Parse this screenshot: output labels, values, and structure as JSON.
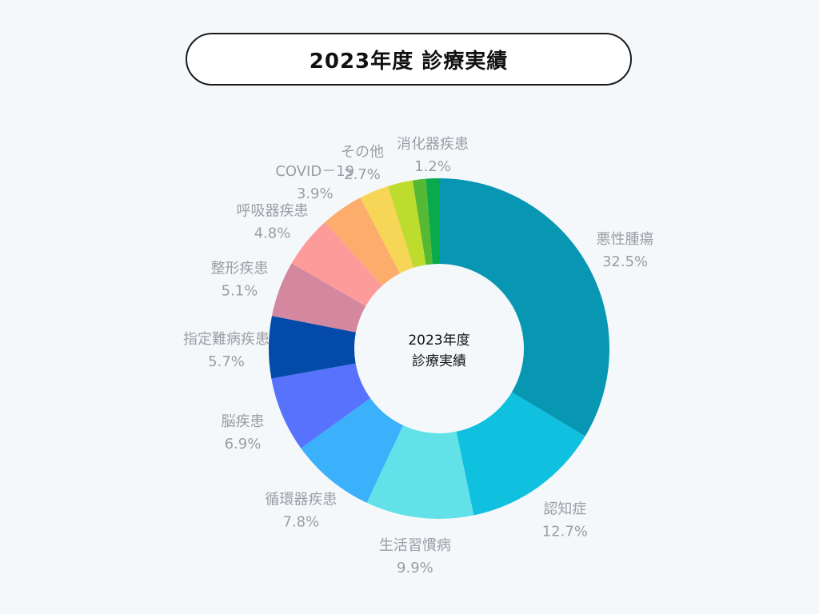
{
  "title": "2023年度 診療実績",
  "chart_data": {
    "type": "pie",
    "center_label_line1": "2023年度",
    "center_label_line2": "診療実績",
    "unit": "%",
    "slices": [
      {
        "label": "悪性腫瘍",
        "value": 32.5,
        "color": "#0897b3"
      },
      {
        "label": "認知症",
        "value": 12.7,
        "color": "#10c1df"
      },
      {
        "label": "生活習慣病",
        "value": 9.9,
        "color": "#62e1e8"
      },
      {
        "label": "循環器疾患",
        "value": 7.8,
        "color": "#3ab1fa"
      },
      {
        "label": "脳疾患",
        "value": 6.9,
        "color": "#5772fd"
      },
      {
        "label": "指定難病疾患",
        "value": 5.7,
        "color": "#044aa9"
      },
      {
        "label": "整形疾患",
        "value": 5.1,
        "color": "#d4889f"
      },
      {
        "label": "呼吸器疾患",
        "value": 4.8,
        "color": "#fd9b9b"
      },
      {
        "label": "COVID－19",
        "value": 3.9,
        "color": "#fdad6b"
      },
      {
        "label": "その他",
        "value": 2.7,
        "color": "#f7d556"
      },
      {
        "label": "",
        "value": 2.3,
        "color": "#bddc2e"
      },
      {
        "label": "",
        "value": 1.2,
        "color": "#55b934"
      },
      {
        "label": "消化器疾患",
        "value": 1.2,
        "color": "#0aaa4a"
      }
    ]
  }
}
